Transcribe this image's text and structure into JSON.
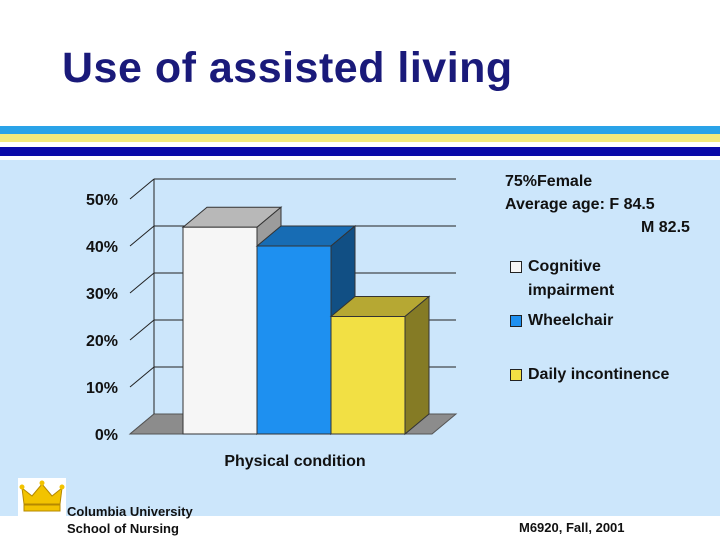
{
  "slide": {
    "title": "Use of assisted living",
    "colors": {
      "title": "#1a1a7a",
      "panel": "#cce6fb",
      "stripe_blue": "#2aa3e8",
      "stripe_yellow": "#f3ea7c",
      "stripe_navy": "#0a0aa8"
    }
  },
  "annotation": {
    "line1": "75%Female",
    "line2": "Average age: F  84.5",
    "line3": "M 82.5"
  },
  "footer": {
    "org_line1": "Columbia University",
    "org_line2": "School of Nursing",
    "course": "M6920, Fall, 2001",
    "logo_icon": "crown-icon"
  },
  "chart_data": {
    "type": "bar",
    "xlabel": "Physical condition",
    "ylim": [
      0,
      50
    ],
    "yticks": [
      "0%",
      "10%",
      "20%",
      "30%",
      "40%",
      "50%"
    ],
    "series": [
      {
        "name": "Cognitive impairment",
        "value": 44,
        "color": "#f6f6f6"
      },
      {
        "name": "Wheelchair",
        "value": 40,
        "color": "#1e90f0"
      },
      {
        "name": "Daily incontinence",
        "value": 25,
        "color": "#f2e044"
      }
    ],
    "legend_position": "right"
  }
}
